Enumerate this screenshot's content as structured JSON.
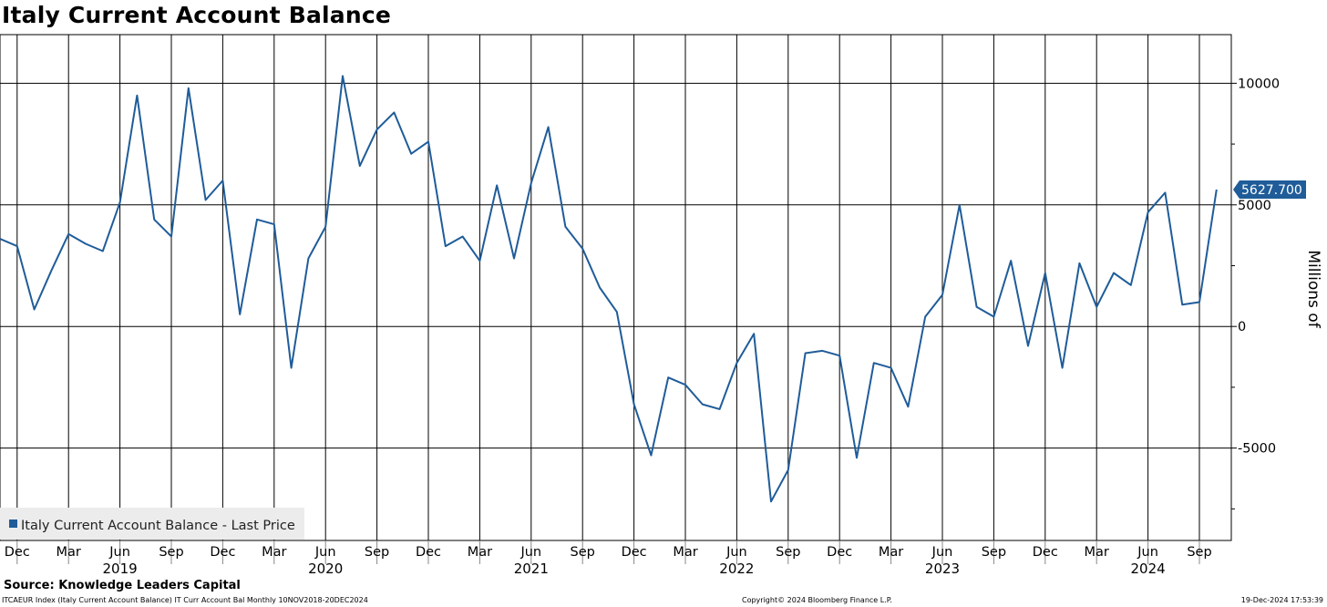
{
  "header": {
    "title": "Italy Current Account Balance"
  },
  "footer": {
    "source": "Source: Knowledge Leaders Capital",
    "ticker_info": "ITCAEUR Index (Italy Current Account Balance) IT Curr Account Bal  Monthly 10NOV2018-20DEC2024",
    "copyright": "Copyright© 2024 Bloomberg Finance L.P.",
    "timestamp": "19-Dec-2024 17:53:39"
  },
  "colors": {
    "line": "#1f5c99",
    "grid": "#000000",
    "legend_bg": "#ececec",
    "label_bg": "#1f5c99"
  },
  "chart_data": {
    "type": "line",
    "title": "Italy Current Account Balance",
    "ylabel": "Millions of",
    "ylim": [
      -8800,
      12000
    ],
    "yticks": [
      -5000,
      0,
      5000,
      10000
    ],
    "ytick_labels": [
      "-5000",
      "0",
      "5000",
      "10000"
    ],
    "month_ticks": [
      "Dec",
      "Mar",
      "Jun",
      "Sep",
      "Dec",
      "Mar",
      "Jun",
      "Sep",
      "Dec",
      "Mar",
      "Jun",
      "Sep",
      "Dec",
      "Mar",
      "Jun",
      "Sep",
      "Dec",
      "Mar",
      "Jun",
      "Sep",
      "Dec",
      "Mar",
      "Jun",
      "Sep"
    ],
    "year_labels": [
      "2019",
      "2020",
      "2021",
      "2022",
      "2023",
      "2024"
    ],
    "legend": "Italy Current Account Balance - Last Price",
    "last_value_label": "5627.700",
    "series": [
      {
        "name": "Italy Current Account Balance - Last Price",
        "start": "2018-11",
        "values": [
          3600,
          3300,
          700,
          2300,
          3800,
          3400,
          3100,
          5100,
          9500,
          4400,
          3700,
          9800,
          5200,
          6000,
          500,
          4400,
          4200,
          -1700,
          2800,
          4100,
          10300,
          6600,
          8100,
          8800,
          7100,
          7600,
          3300,
          3700,
          2700,
          5800,
          2800,
          5900,
          8200,
          4100,
          3200,
          1600,
          600,
          -3200,
          -5300,
          -2100,
          -2400,
          -3200,
          -3400,
          -1500,
          -300,
          -7200,
          -5900,
          -1100,
          -1000,
          -1200,
          -5400,
          -1500,
          -1700,
          -3300,
          400,
          1300,
          5000,
          800,
          400,
          2700,
          -800,
          2200,
          -1700,
          2600,
          800,
          2200,
          1700,
          4700,
          5500,
          900,
          1000,
          5627.7
        ]
      }
    ]
  }
}
